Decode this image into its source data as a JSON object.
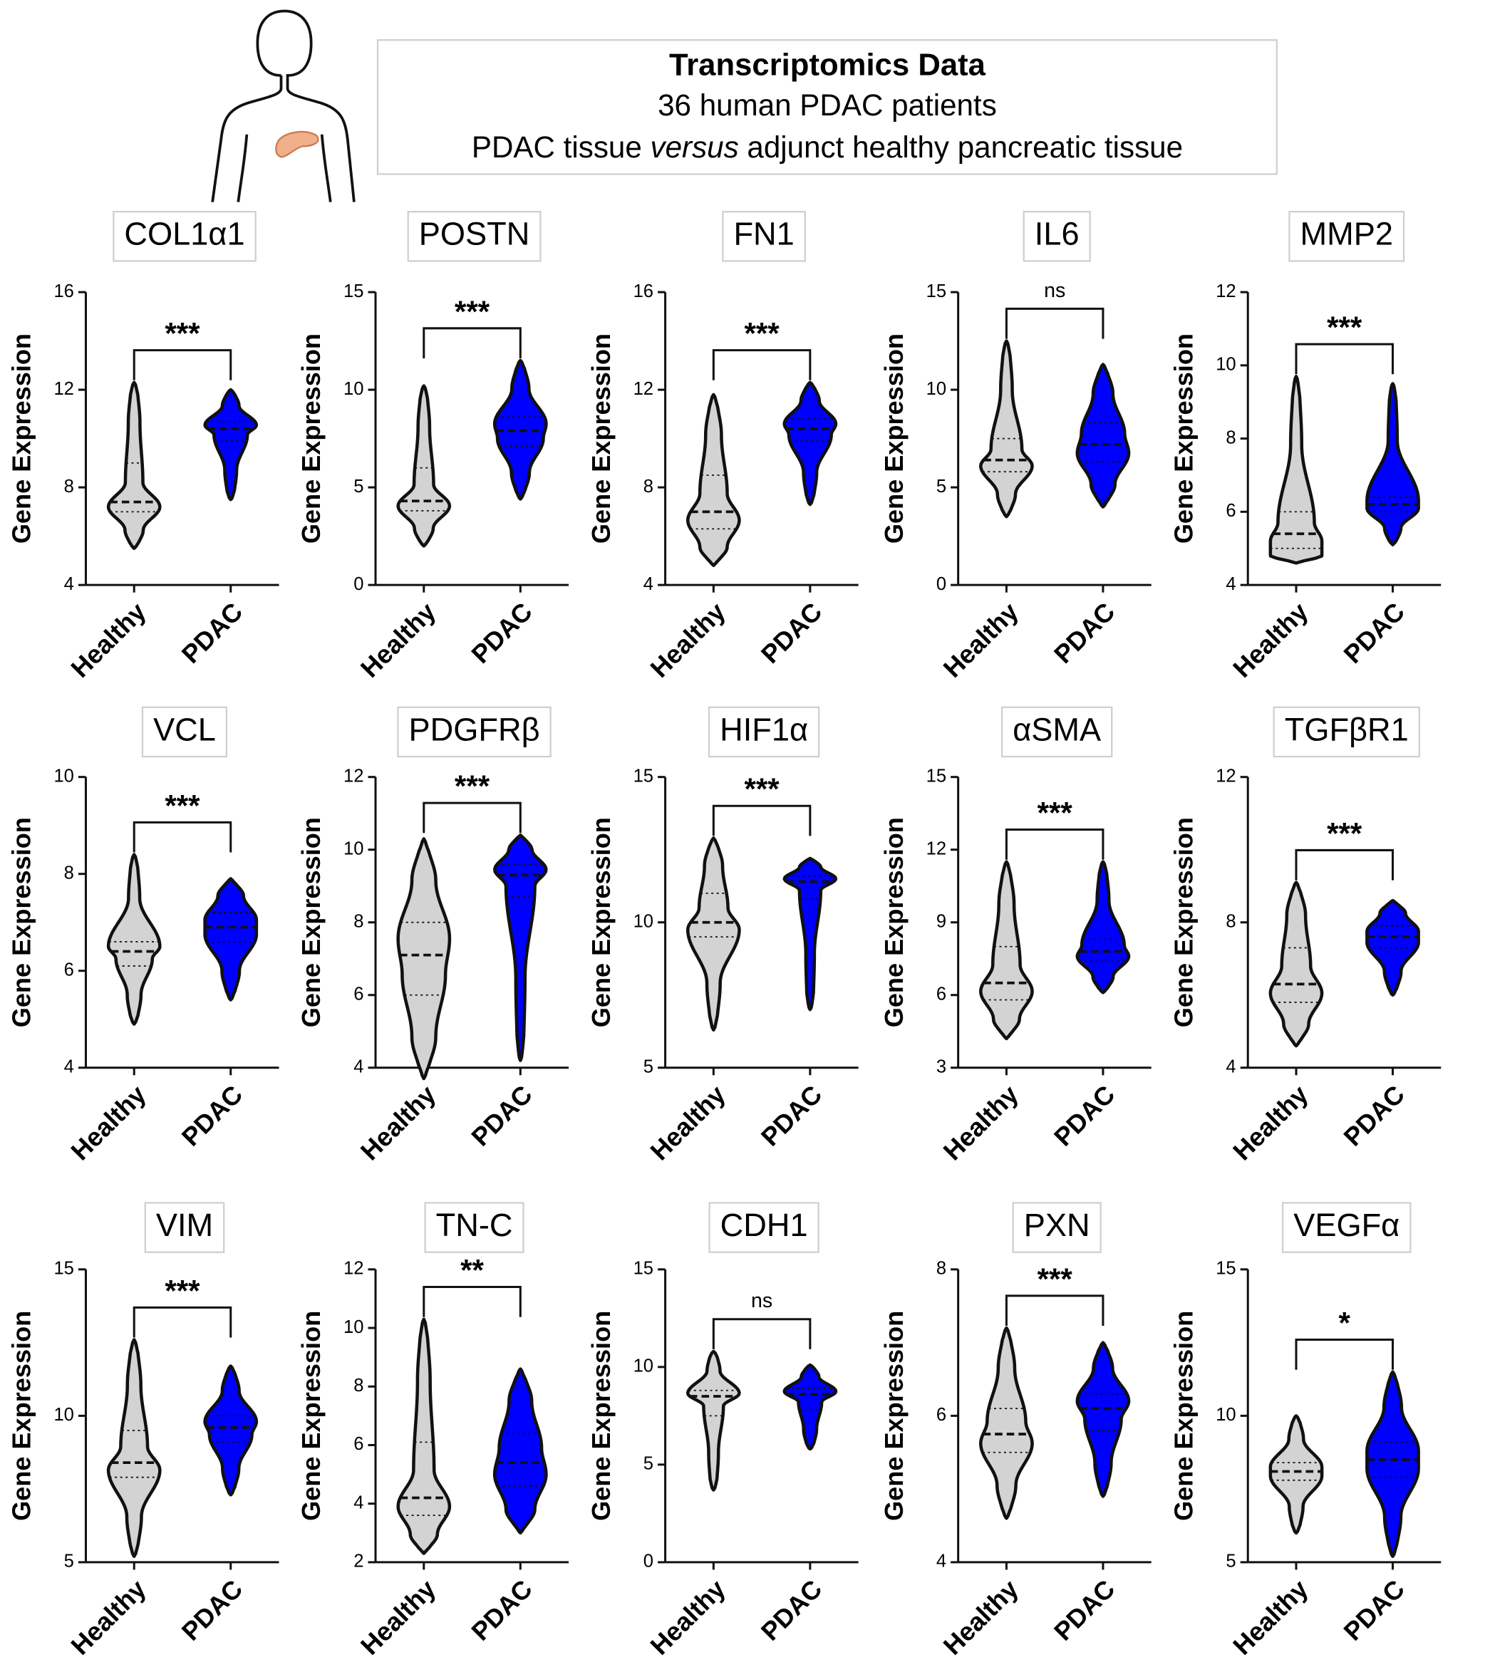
{
  "header": {
    "title": "Transcriptomics Data",
    "subtitle": "36 human PDAC patients",
    "description": [
      "PDAC tissue ",
      "versus",
      " adjunct healthy pancreatic tissue"
    ]
  },
  "chart_data": [
    {
      "type": "violin",
      "title": "COL1α1",
      "y_label": "Gene Expression",
      "categories": [
        "Healthy",
        "PDAC"
      ],
      "ylim": [
        4,
        16
      ],
      "yticks": [
        4,
        8,
        12,
        16
      ],
      "significance": "***",
      "series": [
        {
          "color": "#d3d3d3",
          "min": 5.5,
          "q1": 7.0,
          "median": 7.4,
          "q3": 9.0,
          "max": 12.3
        },
        {
          "color": "#0000ff",
          "min": 7.5,
          "q1": 9.9,
          "median": 10.4,
          "q3": 10.7,
          "max": 12.0
        }
      ]
    },
    {
      "type": "violin",
      "title": "POSTN",
      "y_label": "Gene Expression",
      "categories": [
        "Healthy",
        "PDAC"
      ],
      "ylim": [
        0,
        15
      ],
      "yticks": [
        0,
        5,
        10,
        15
      ],
      "significance": "***",
      "series": [
        {
          "color": "#d3d3d3",
          "min": 2.0,
          "q1": 3.8,
          "median": 4.3,
          "q3": 6.0,
          "max": 10.2
        },
        {
          "color": "#0000ff",
          "min": 4.4,
          "q1": 7.1,
          "median": 7.9,
          "q3": 8.6,
          "max": 11.5
        }
      ]
    },
    {
      "type": "violin",
      "title": "FN1",
      "y_label": "Gene Expression",
      "categories": [
        "Healthy",
        "PDAC"
      ],
      "ylim": [
        4,
        16
      ],
      "yticks": [
        4,
        8,
        12,
        16
      ],
      "significance": "***",
      "series": [
        {
          "color": "#d3d3d3",
          "min": 4.8,
          "q1": 6.3,
          "median": 7.0,
          "q3": 8.5,
          "max": 11.8
        },
        {
          "color": "#0000ff",
          "min": 7.3,
          "q1": 9.9,
          "median": 10.4,
          "q3": 10.8,
          "max": 12.3
        }
      ]
    },
    {
      "type": "violin",
      "title": "IL6",
      "y_label": "Gene Expression",
      "categories": [
        "Healthy",
        "PDAC"
      ],
      "ylim": [
        0,
        15
      ],
      "yticks": [
        0,
        5,
        10,
        15
      ],
      "significance": "ns",
      "series": [
        {
          "color": "#d3d3d3",
          "min": 3.5,
          "q1": 5.8,
          "median": 6.4,
          "q3": 7.5,
          "max": 12.5
        },
        {
          "color": "#0000ff",
          "min": 4.0,
          "q1": 6.3,
          "median": 7.2,
          "q3": 8.3,
          "max": 11.3
        }
      ]
    },
    {
      "type": "violin",
      "title": "MMP2",
      "y_label": "Gene Expression",
      "categories": [
        "Healthy",
        "PDAC"
      ],
      "ylim": [
        4,
        12
      ],
      "yticks": [
        4,
        6,
        8,
        10,
        12
      ],
      "significance": "***",
      "series": [
        {
          "color": "#d3d3d3",
          "min": 4.6,
          "q1": 5.0,
          "median": 5.4,
          "q3": 6.0,
          "max": 9.7
        },
        {
          "color": "#0000ff",
          "min": 5.1,
          "q1": 6.0,
          "median": 6.2,
          "q3": 6.4,
          "max": 9.5
        }
      ]
    },
    {
      "type": "violin",
      "title": "VCL",
      "y_label": "Gene Expression",
      "categories": [
        "Healthy",
        "PDAC"
      ],
      "ylim": [
        4,
        10
      ],
      "yticks": [
        4,
        6,
        8,
        10
      ],
      "significance": "***",
      "series": [
        {
          "color": "#d3d3d3",
          "min": 4.9,
          "q1": 6.1,
          "median": 6.4,
          "q3": 6.6,
          "max": 8.4
        },
        {
          "color": "#0000ff",
          "min": 5.4,
          "q1": 6.6,
          "median": 6.9,
          "q3": 7.2,
          "max": 7.9
        }
      ]
    },
    {
      "type": "violin",
      "title": "PDGFRβ",
      "y_label": "Gene Expression",
      "categories": [
        "Healthy",
        "PDAC"
      ],
      "ylim": [
        4,
        12
      ],
      "yticks": [
        4,
        6,
        8,
        10,
        12
      ],
      "significance": "***",
      "series": [
        {
          "color": "#d3d3d3",
          "min": 3.7,
          "q1": 6.0,
          "median": 7.1,
          "q3": 8.0,
          "max": 10.3
        },
        {
          "color": "#0000ff",
          "min": 4.2,
          "q1": 8.7,
          "median": 9.3,
          "q3": 9.6,
          "max": 10.4
        }
      ]
    },
    {
      "type": "violin",
      "title": "HIF1α",
      "y_label": "Gene Expression",
      "categories": [
        "Healthy",
        "PDAC"
      ],
      "ylim": [
        5,
        15
      ],
      "yticks": [
        5,
        10,
        15
      ],
      "significance": "***",
      "series": [
        {
          "color": "#d3d3d3",
          "min": 6.3,
          "q1": 9.5,
          "median": 10.0,
          "q3": 11.0,
          "max": 12.9
        },
        {
          "color": "#0000ff",
          "min": 7.0,
          "q1": 10.8,
          "median": 11.4,
          "q3": 11.6,
          "max": 12.2
        }
      ]
    },
    {
      "type": "violin",
      "title": "αSMA",
      "y_label": "Gene Expression",
      "categories": [
        "Healthy",
        "PDAC"
      ],
      "ylim": [
        3,
        15
      ],
      "yticks": [
        3,
        6,
        9,
        12,
        15
      ],
      "significance": "***",
      "series": [
        {
          "color": "#d3d3d3",
          "min": 4.2,
          "q1": 5.8,
          "median": 6.5,
          "q3": 8.0,
          "max": 11.5
        },
        {
          "color": "#0000ff",
          "min": 6.1,
          "q1": 7.4,
          "median": 7.8,
          "q3": 8.3,
          "max": 11.5
        }
      ]
    },
    {
      "type": "violin",
      "title": "TGFβR1",
      "y_label": "Gene Expression",
      "categories": [
        "Healthy",
        "PDAC"
      ],
      "ylim": [
        4,
        12
      ],
      "yticks": [
        4,
        8,
        12
      ],
      "significance": "***",
      "series": [
        {
          "color": "#d3d3d3",
          "min": 4.6,
          "q1": 5.8,
          "median": 6.3,
          "q3": 7.3,
          "max": 9.1
        },
        {
          "color": "#0000ff",
          "min": 6.0,
          "q1": 7.3,
          "median": 7.6,
          "q3": 7.9,
          "max": 8.6
        }
      ]
    },
    {
      "type": "violin",
      "title": "VIM",
      "y_label": "Gene Expression",
      "categories": [
        "Healthy",
        "PDAC"
      ],
      "ylim": [
        5,
        15
      ],
      "yticks": [
        5,
        10,
        15
      ],
      "significance": "***",
      "series": [
        {
          "color": "#d3d3d3",
          "min": 5.2,
          "q1": 7.9,
          "median": 8.4,
          "q3": 9.5,
          "max": 12.6
        },
        {
          "color": "#0000ff",
          "min": 7.3,
          "q1": 9.1,
          "median": 9.6,
          "q3": 10.0,
          "max": 11.7
        }
      ]
    },
    {
      "type": "violin",
      "title": "TN-C",
      "y_label": "Gene Expression",
      "categories": [
        "Healthy",
        "PDAC"
      ],
      "ylim": [
        2,
        12
      ],
      "yticks": [
        2,
        4,
        6,
        8,
        10,
        12
      ],
      "significance": "**",
      "series": [
        {
          "color": "#d3d3d3",
          "min": 2.3,
          "q1": 3.6,
          "median": 4.2,
          "q3": 6.1,
          "max": 10.3
        },
        {
          "color": "#0000ff",
          "min": 3.0,
          "q1": 4.6,
          "median": 5.4,
          "q3": 6.4,
          "max": 8.6
        }
      ]
    },
    {
      "type": "violin",
      "title": "CDH1",
      "y_label": "Gene Expression",
      "categories": [
        "Healthy",
        "PDAC"
      ],
      "ylim": [
        0,
        15
      ],
      "yticks": [
        0,
        5,
        10,
        15
      ],
      "significance": "ns",
      "series": [
        {
          "color": "#d3d3d3",
          "min": 3.7,
          "q1": 7.5,
          "median": 8.5,
          "q3": 8.8,
          "max": 10.8
        },
        {
          "color": "#0000ff",
          "min": 5.8,
          "q1": 7.8,
          "median": 8.6,
          "q3": 8.9,
          "max": 10.1
        }
      ]
    },
    {
      "type": "violin",
      "title": "PXN",
      "y_label": "Gene Expression",
      "categories": [
        "Healthy",
        "PDAC"
      ],
      "ylim": [
        4,
        8
      ],
      "yticks": [
        4,
        6,
        8
      ],
      "significance": "***",
      "series": [
        {
          "color": "#d3d3d3",
          "min": 4.6,
          "q1": 5.5,
          "median": 5.75,
          "q3": 6.1,
          "max": 7.2
        },
        {
          "color": "#0000ff",
          "min": 4.9,
          "q1": 5.8,
          "median": 6.1,
          "q3": 6.3,
          "max": 7.0
        }
      ]
    },
    {
      "type": "violin",
      "title": "VEGFα",
      "y_label": "Gene Expression",
      "categories": [
        "Healthy",
        "PDAC"
      ],
      "ylim": [
        5,
        15
      ],
      "yticks": [
        5,
        10,
        15
      ],
      "significance": "*",
      "series": [
        {
          "color": "#d3d3d3",
          "min": 6.0,
          "q1": 7.8,
          "median": 8.1,
          "q3": 8.4,
          "max": 10.0
        },
        {
          "color": "#0000ff",
          "min": 5.2,
          "q1": 7.9,
          "median": 8.5,
          "q3": 9.1,
          "max": 11.5
        }
      ]
    }
  ]
}
